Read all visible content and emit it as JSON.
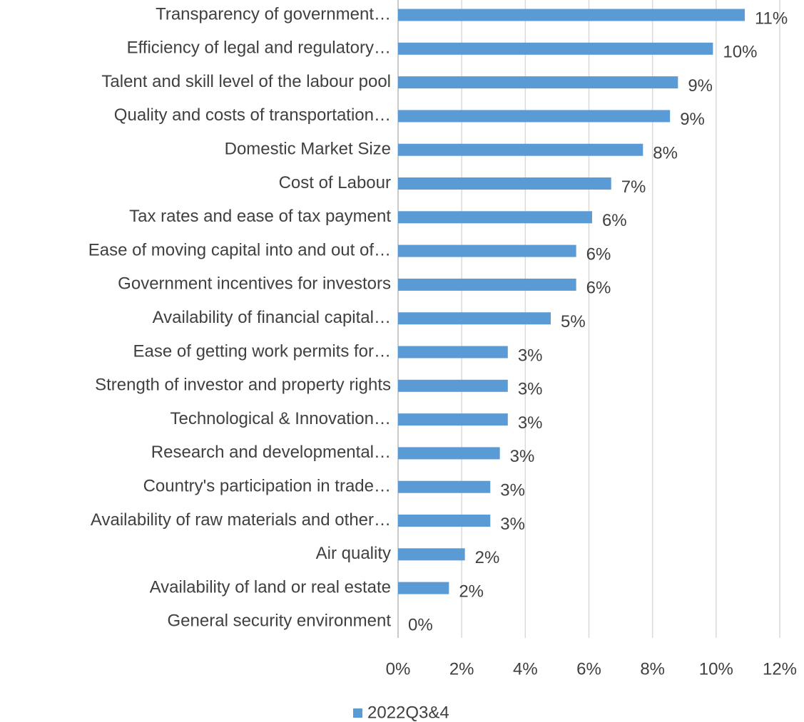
{
  "chart_data": {
    "type": "bar",
    "orientation": "horizontal",
    "categories": [
      "Transparency of government…",
      "Efficiency of legal and regulatory…",
      "Talent and skill level of the labour pool",
      "Quality and costs of transportation…",
      "Domestic Market Size",
      "Cost of Labour",
      "Tax rates and ease of tax payment",
      "Ease of moving capital into and out of…",
      "Government incentives for investors",
      "Availability of financial capital…",
      "Ease of getting work permits for…",
      "Strength of investor and property rights",
      "Technological & Innovation…",
      "Research and developmental…",
      "Country's participation in trade…",
      "Availability of raw materials and other…",
      "Air quality",
      "Availability of land or real estate",
      "General security environment"
    ],
    "series": [
      {
        "name": "2022Q3&4",
        "color": "#5b9bd5",
        "values": [
          10.9,
          9.9,
          8.8,
          8.55,
          7.7,
          6.7,
          6.1,
          5.6,
          5.6,
          4.8,
          3.45,
          3.45,
          3.45,
          3.2,
          2.9,
          2.9,
          2.1,
          1.6,
          0
        ],
        "value_labels": [
          "11%",
          "10%",
          "9%",
          "9%",
          "8%",
          "7%",
          "6%",
          "6%",
          "6%",
          "5%",
          "3%",
          "3%",
          "3%",
          "3%",
          "3%",
          "3%",
          "2%",
          "2%",
          "0%"
        ]
      }
    ],
    "xlim": [
      0,
      12
    ],
    "xticks": [
      {
        "value": 0,
        "label": "0%"
      },
      {
        "value": 2,
        "label": "2%"
      },
      {
        "value": 4,
        "label": "4%"
      },
      {
        "value": 6,
        "label": "6%"
      },
      {
        "value": 8,
        "label": "8%"
      },
      {
        "value": 10,
        "label": "10%"
      },
      {
        "value": 12,
        "label": "12%"
      }
    ],
    "grid": true,
    "legend": "bottom"
  }
}
